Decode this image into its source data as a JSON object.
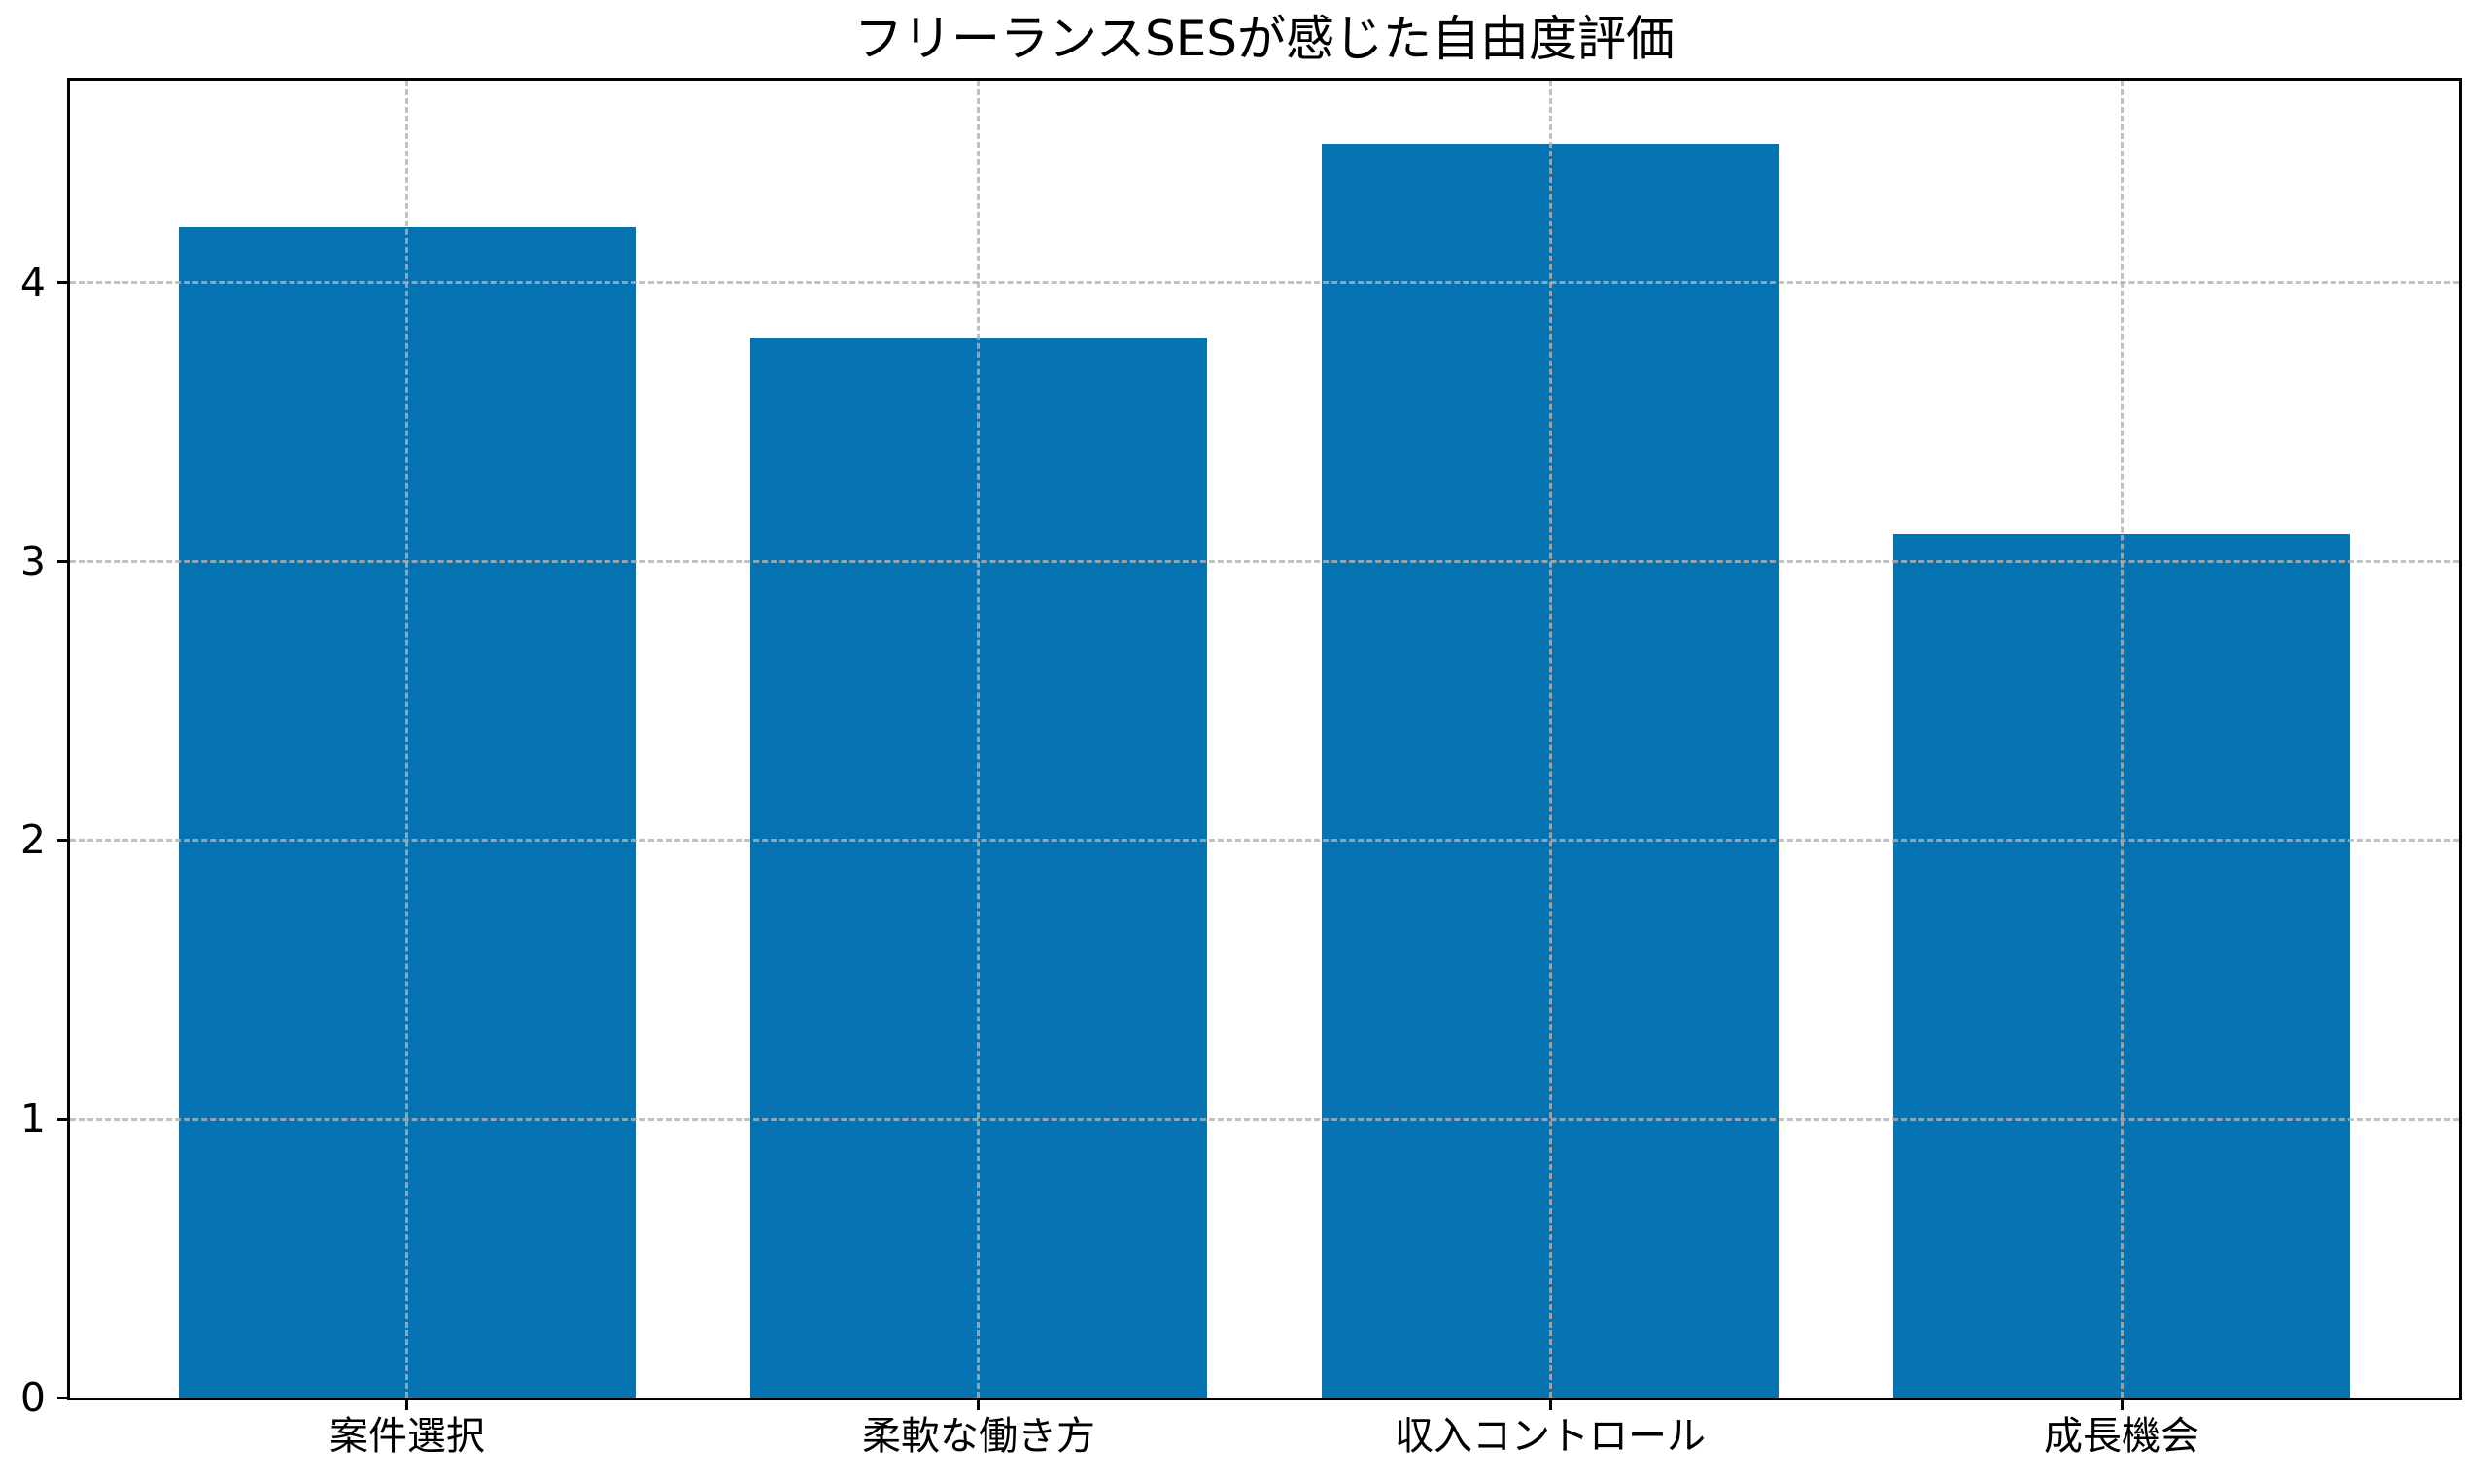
{
  "chart_data": {
    "type": "bar",
    "title": "フリーランスSESが感じた自由度評価",
    "categories": [
      "案件選択",
      "柔軟な働き方",
      "収入コントロール",
      "成長機会"
    ],
    "values": [
      4.2,
      3.8,
      4.5,
      3.1
    ],
    "xlabel": "",
    "ylabel": "",
    "ylim": [
      0,
      4.725
    ],
    "yticks": [
      0,
      1,
      2,
      3,
      4
    ],
    "bar_color": "#0572b1",
    "axis_color": "#000000",
    "grid_color": "#b2b2b2",
    "grid": "dashed gridlines on both axes, drawn above bars",
    "legend_position": "none"
  }
}
